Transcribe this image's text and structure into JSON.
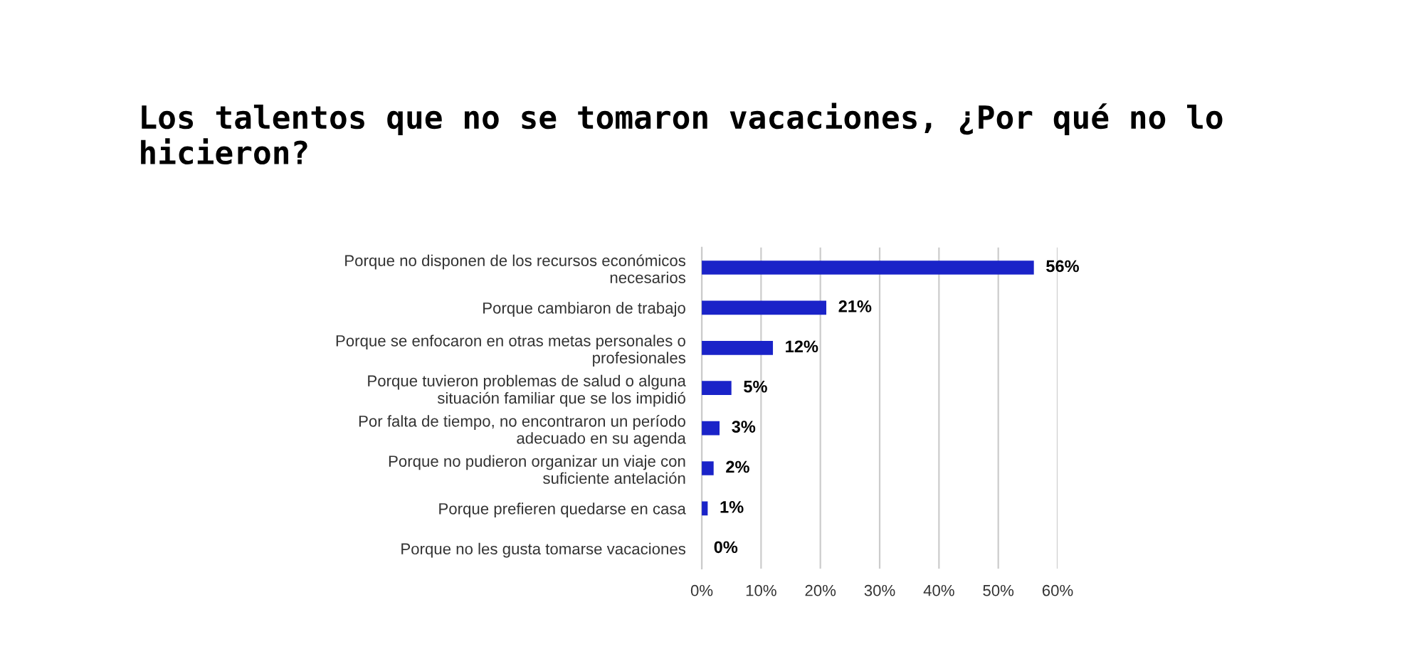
{
  "chart_data": {
    "type": "bar",
    "orientation": "horizontal",
    "title": "Los talentos que no se tomaron vacaciones, ¿Por qué no lo\nhicieron?",
    "categories": [
      "Porque no disponen de los recursos económicos\nnecesarios",
      "Porque cambiaron de trabajo",
      "Porque se enfocaron en otras metas personales o\nprofesionales",
      "Porque tuvieron problemas de salud o alguna\nsituación familiar que se los impidió",
      "Por falta de tiempo, no encontraron un período\nadecuado en su agenda",
      "Porque no pudieron organizar un viaje con\nsuficiente antelación",
      "Porque prefieren quedarse en casa",
      "Porque no les gusta tomarse vacaciones"
    ],
    "values": [
      56,
      21,
      12,
      5,
      3,
      2,
      1,
      0
    ],
    "value_labels": [
      "56%",
      "21%",
      "12%",
      "5%",
      "3%",
      "2%",
      "1%",
      "0%"
    ],
    "color": "#1a23c8",
    "xlim": [
      0,
      60
    ],
    "xticks": [
      {
        "value": 0,
        "label": "0%"
      },
      {
        "value": 10,
        "label": "10%"
      },
      {
        "value": 20,
        "label": "20%"
      },
      {
        "value": 30,
        "label": "30%"
      },
      {
        "value": 40,
        "label": "40%"
      },
      {
        "value": 50,
        "label": "50%"
      },
      {
        "value": 60,
        "label": "60%"
      }
    ],
    "grid": "x",
    "legend": false
  }
}
